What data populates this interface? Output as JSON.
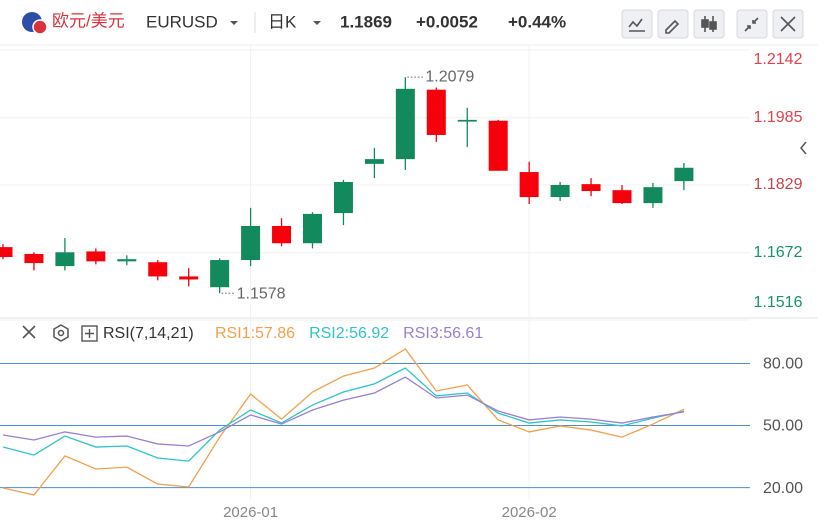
{
  "header": {
    "name": "欧元/美元",
    "symbol": "EURUSD",
    "period": "日K",
    "price": 1.1869,
    "change": "+0.0052",
    "change_pct": "+0.44%",
    "up_color": "#e0303c"
  },
  "chart_data": [
    {
      "type": "candlestick",
      "categories": [
        null,
        null,
        null,
        null,
        null,
        null,
        null,
        null,
        "2026-01",
        null,
        null,
        null,
        null,
        null,
        null,
        null,
        null,
        "2026-02",
        null,
        null,
        null,
        null,
        null
      ],
      "open": [
        1.1685,
        1.1669,
        1.1641,
        1.1675,
        1.1652,
        1.165,
        1.1617,
        1.1592,
        1.1655,
        1.1734,
        1.1694,
        1.1764,
        1.1878,
        1.1889,
        1.205,
        1.1976,
        1.1978,
        1.1859,
        1.1801,
        1.1831,
        1.1817,
        1.1787,
        1.1838
      ],
      "high": [
        1.1692,
        1.1673,
        1.1706,
        1.1682,
        1.1666,
        1.1655,
        1.1636,
        1.1659,
        1.1776,
        1.1752,
        1.1766,
        1.1841,
        1.1915,
        1.2079,
        1.2055,
        1.2008,
        1.198,
        1.1883,
        1.1836,
        1.1845,
        1.1829,
        1.1834,
        1.188
      ],
      "low": [
        1.1657,
        1.1631,
        1.1631,
        1.1645,
        1.1643,
        1.1608,
        1.1594,
        1.1578,
        1.1641,
        1.1687,
        1.1682,
        1.1736,
        1.1845,
        1.1864,
        1.1929,
        1.1917,
        1.1862,
        1.1785,
        1.1792,
        1.1803,
        1.1785,
        1.1776,
        1.1817
      ],
      "close": [
        1.1662,
        1.1648,
        1.1673,
        1.1652,
        1.1657,
        1.1617,
        1.161,
        1.1655,
        1.1734,
        1.1694,
        1.1762,
        1.1836,
        1.1889,
        1.2052,
        1.1945,
        1.198,
        1.1862,
        1.1801,
        1.1829,
        1.1815,
        1.1787,
        1.1824,
        1.1869
      ],
      "up_color": "#138a5e",
      "down_color": "#f5000b",
      "ylim": [
        1.1516,
        1.2142
      ],
      "yticks": [
        1.2142,
        1.1985,
        1.1829,
        1.1672,
        1.1516
      ],
      "ytick_colors": [
        "#e0424f",
        "#e0424f",
        "#c9424a",
        "#16946a",
        "#16946a"
      ],
      "high_index": 13,
      "low_index": 7,
      "grid": true
    },
    {
      "type": "line",
      "title": "RSI(7,14,21)",
      "ylim": [
        14,
        101
      ],
      "yticks": [
        {
          "value": 80,
          "label": "80.00"
        },
        {
          "value": 50,
          "label": "50.00"
        },
        {
          "value": 20,
          "label": "20.00"
        }
      ],
      "tick_color": "#4a8fd6",
      "series": [
        {
          "name": "RSI1",
          "color": "#f5a04a",
          "values": [
            19.8,
            16.4,
            35.3,
            29.0,
            29.9,
            21.7,
            20.3,
            44.4,
            65.2,
            53.1,
            66.2,
            73.9,
            77.8,
            87.0,
            66.7,
            69.6,
            52.7,
            46.9,
            49.8,
            47.8,
            44.4,
            50.7,
            57.86
          ]
        },
        {
          "name": "RSI2",
          "color": "#2ec4c9",
          "values": [
            39.6,
            35.7,
            44.9,
            39.6,
            40.1,
            34.3,
            32.8,
            47.8,
            57.5,
            51.2,
            59.9,
            66.2,
            70.1,
            77.8,
            64.3,
            65.7,
            56.0,
            51.2,
            52.7,
            51.7,
            49.8,
            53.6,
            56.92
          ]
        },
        {
          "name": "RSI3",
          "color": "#9b7fd1",
          "values": [
            45.4,
            43.0,
            46.9,
            44.4,
            44.9,
            41.1,
            40.1,
            46.9,
            55.1,
            50.7,
            57.5,
            62.3,
            65.7,
            73.4,
            63.3,
            64.7,
            57.0,
            52.7,
            54.1,
            53.1,
            51.2,
            54.1,
            56.61
          ]
        }
      ]
    }
  ]
}
